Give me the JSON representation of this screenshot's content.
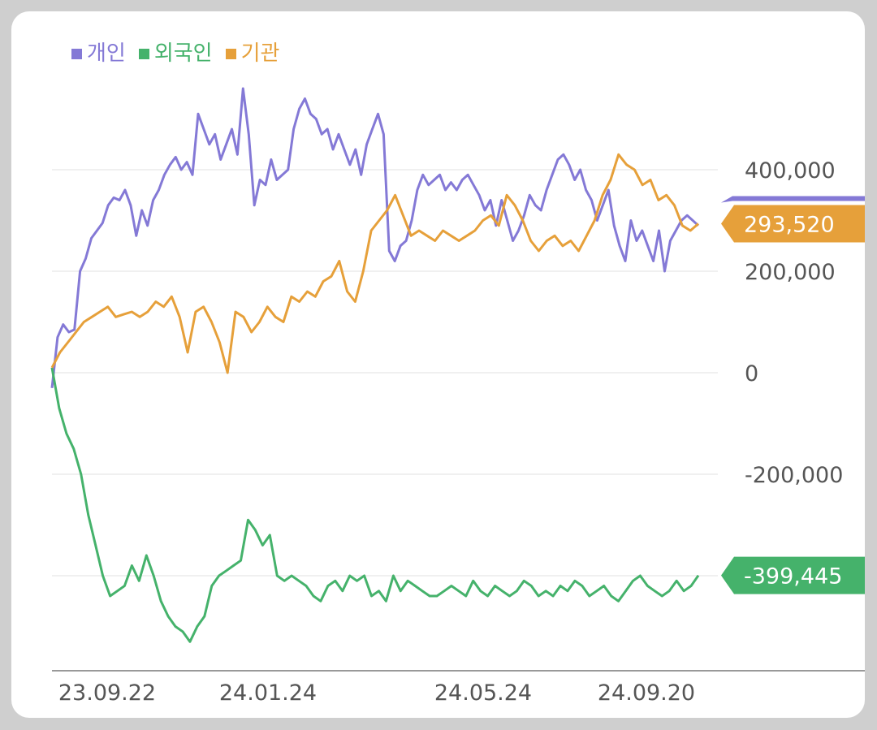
{
  "chart_data": {
    "type": "line",
    "x_ticks": [
      "23.09.22",
      "24.01.24",
      "24.05.24",
      "24.09.20"
    ],
    "y_ticks": [
      {
        "value": 400000,
        "label": "400,000"
      },
      {
        "value": 200000,
        "label": "200,000"
      },
      {
        "value": 0,
        "label": "0"
      },
      {
        "value": -200000,
        "label": "-200,000"
      }
    ],
    "ylim": [
      -590000,
      580000
    ],
    "grid": true,
    "legend_position": "top-left",
    "series": [
      {
        "name": "개인",
        "color": "#8479d6",
        "last_label": "",
        "values": [
          -30000,
          70000,
          95000,
          80000,
          85000,
          200000,
          225000,
          265000,
          280000,
          295000,
          330000,
          345000,
          340000,
          360000,
          330000,
          270000,
          320000,
          290000,
          340000,
          360000,
          390000,
          410000,
          425000,
          400000,
          415000,
          390000,
          510000,
          480000,
          450000,
          470000,
          420000,
          450000,
          480000,
          430000,
          560000,
          470000,
          330000,
          380000,
          370000,
          420000,
          380000,
          390000,
          400000,
          480000,
          520000,
          540000,
          510000,
          500000,
          470000,
          480000,
          440000,
          470000,
          440000,
          410000,
          440000,
          390000,
          450000,
          480000,
          510000,
          470000,
          240000,
          220000,
          250000,
          260000,
          300000,
          360000,
          390000,
          370000,
          380000,
          390000,
          360000,
          375000,
          360000,
          380000,
          390000,
          370000,
          350000,
          320000,
          340000,
          290000,
          340000,
          300000,
          260000,
          280000,
          310000,
          350000,
          330000,
          320000,
          360000,
          390000,
          420000,
          430000,
          410000,
          380000,
          400000,
          360000,
          340000,
          300000,
          330000,
          360000,
          290000,
          250000,
          220000,
          300000,
          260000,
          280000,
          250000,
          220000,
          280000,
          200000,
          260000,
          280000,
          300000,
          310000,
          300000,
          290000
        ],
        "end_value": 293520
      },
      {
        "name": "외국인",
        "color": "#45b26b",
        "last_label": "-399,445",
        "values": [
          10000,
          -70000,
          -120000,
          -150000,
          -200000,
          -280000,
          -340000,
          -400000,
          -440000,
          -430000,
          -420000,
          -380000,
          -410000,
          -360000,
          -400000,
          -450000,
          -480000,
          -500000,
          -510000,
          -530000,
          -500000,
          -480000,
          -420000,
          -400000,
          -390000,
          -380000,
          -370000,
          -290000,
          -310000,
          -340000,
          -320000,
          -400000,
          -410000,
          -400000,
          -410000,
          -420000,
          -440000,
          -450000,
          -420000,
          -410000,
          -430000,
          -400000,
          -410000,
          -400000,
          -440000,
          -430000,
          -450000,
          -400000,
          -430000,
          -410000,
          -420000,
          -430000,
          -440000,
          -440000,
          -430000,
          -420000,
          -430000,
          -440000,
          -410000,
          -430000,
          -440000,
          -420000,
          -430000,
          -440000,
          -430000,
          -410000,
          -420000,
          -440000,
          -430000,
          -440000,
          -420000,
          -430000,
          -410000,
          -420000,
          -440000,
          -430000,
          -420000,
          -440000,
          -450000,
          -430000,
          -410000,
          -400000,
          -420000,
          -430000,
          -440000,
          -430000,
          -410000,
          -430000,
          -420000,
          -399445
        ],
        "end_value": -399445
      },
      {
        "name": "기관",
        "color": "#e6a03a",
        "last_label": "293,520",
        "values": [
          10000,
          40000,
          60000,
          80000,
          100000,
          110000,
          120000,
          130000,
          110000,
          115000,
          120000,
          110000,
          120000,
          140000,
          130000,
          150000,
          110000,
          40000,
          120000,
          130000,
          100000,
          60000,
          0,
          120000,
          110000,
          80000,
          100000,
          130000,
          110000,
          100000,
          150000,
          140000,
          160000,
          150000,
          180000,
          190000,
          220000,
          160000,
          140000,
          200000,
          280000,
          300000,
          320000,
          350000,
          310000,
          270000,
          280000,
          270000,
          260000,
          280000,
          270000,
          260000,
          270000,
          280000,
          300000,
          310000,
          290000,
          350000,
          330000,
          300000,
          260000,
          240000,
          260000,
          270000,
          250000,
          260000,
          240000,
          270000,
          300000,
          350000,
          380000,
          430000,
          410000,
          400000,
          370000,
          380000,
          340000,
          350000,
          330000,
          290000,
          280000,
          293520
        ],
        "end_value": 293520
      }
    ]
  }
}
